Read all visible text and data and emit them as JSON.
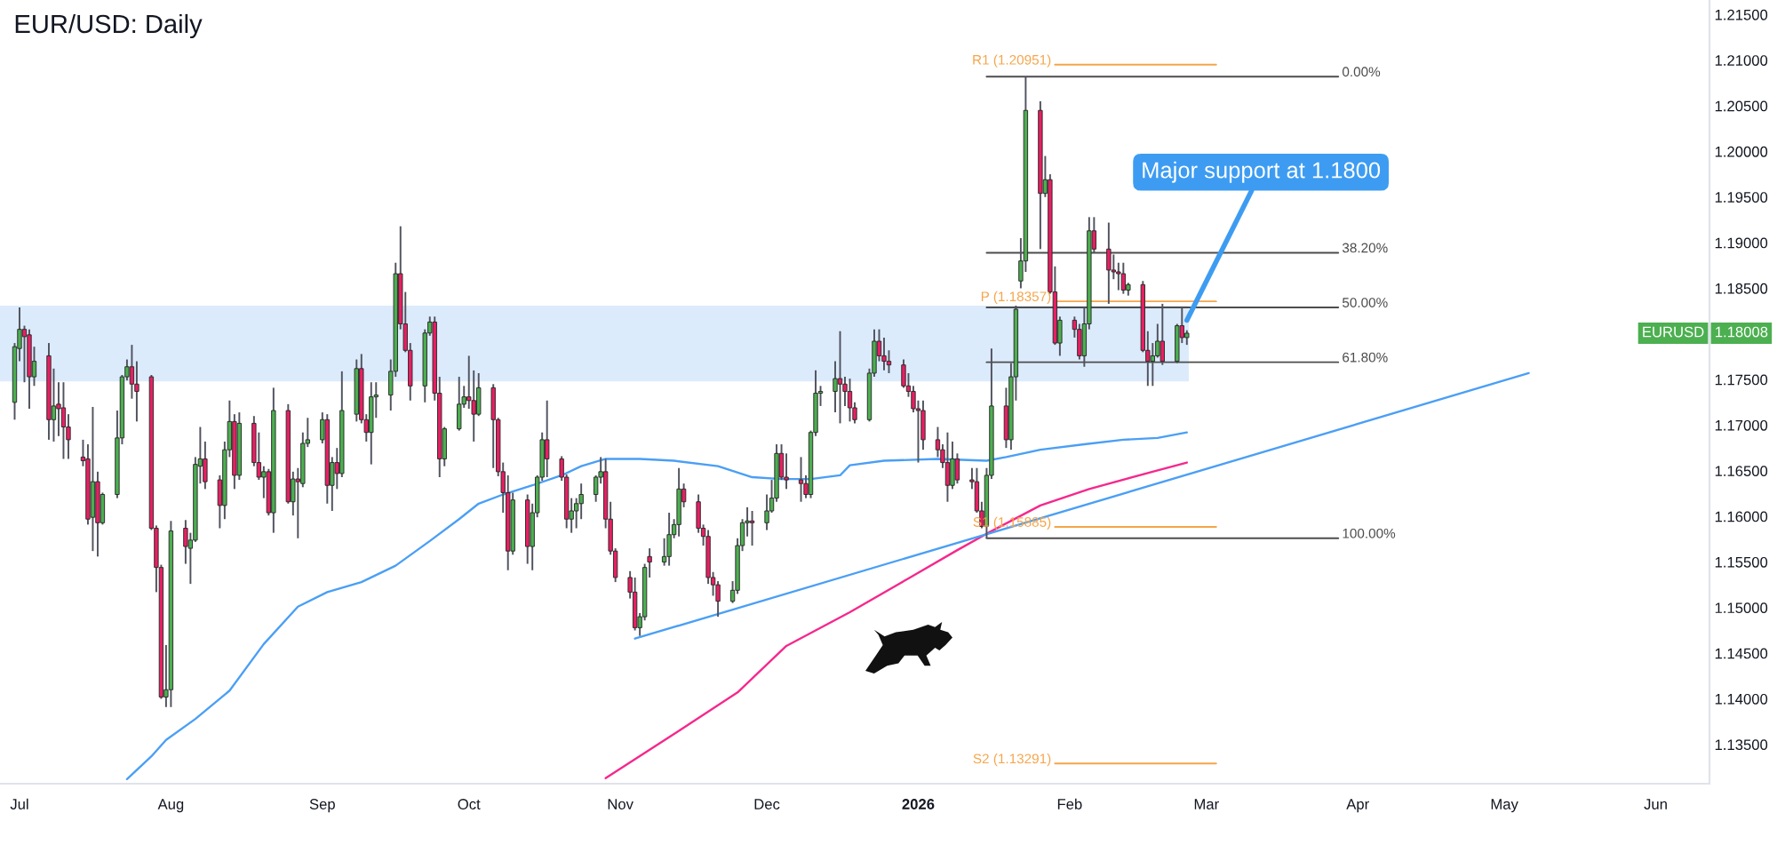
{
  "chart_data": {
    "type": "candlestick",
    "title": "EUR/USD: Daily",
    "x": [
      "2025-06-30",
      "2025-07-01",
      "2025-07-02",
      "2025-07-03",
      "2025-07-04",
      "2025-07-07",
      "2025-07-08",
      "2025-07-09",
      "2025-07-10",
      "2025-07-11",
      "2025-07-14",
      "2025-07-15",
      "2025-07-16",
      "2025-07-17",
      "2025-07-18",
      "2025-07-21",
      "2025-07-22",
      "2025-07-23",
      "2025-07-24",
      "2025-07-25",
      "2025-07-28",
      "2025-07-29",
      "2025-07-30",
      "2025-07-31",
      "2025-08-01",
      "2025-08-04",
      "2025-08-05",
      "2025-08-06",
      "2025-08-07",
      "2025-08-08",
      "2025-08-11",
      "2025-08-12",
      "2025-08-13",
      "2025-08-14",
      "2025-08-15",
      "2025-08-18",
      "2025-08-19",
      "2025-08-20",
      "2025-08-21",
      "2025-08-22",
      "2025-08-25",
      "2025-08-26",
      "2025-08-27",
      "2025-08-28",
      "2025-08-29",
      "2025-09-01",
      "2025-09-02",
      "2025-09-03",
      "2025-09-04",
      "2025-09-05",
      "2025-09-08",
      "2025-09-09",
      "2025-09-10",
      "2025-09-11",
      "2025-09-12",
      "2025-09-15",
      "2025-09-16",
      "2025-09-17",
      "2025-09-18",
      "2025-09-19",
      "2025-09-22",
      "2025-09-23",
      "2025-09-24",
      "2025-09-25",
      "2025-09-26",
      "2025-09-29",
      "2025-09-30",
      "2025-10-01",
      "2025-10-02",
      "2025-10-03",
      "2025-10-06",
      "2025-10-07",
      "2025-10-08",
      "2025-10-09",
      "2025-10-10",
      "2025-10-13",
      "2025-10-14",
      "2025-10-15",
      "2025-10-16",
      "2025-10-17",
      "2025-10-20",
      "2025-10-21",
      "2025-10-22",
      "2025-10-23",
      "2025-10-24",
      "2025-10-27",
      "2025-10-28",
      "2025-10-29",
      "2025-10-30",
      "2025-10-31",
      "2025-11-03",
      "2025-11-04",
      "2025-11-05",
      "2025-11-06",
      "2025-11-07",
      "2025-11-10",
      "2025-11-11",
      "2025-11-12",
      "2025-11-13",
      "2025-11-14",
      "2025-11-17",
      "2025-11-18",
      "2025-11-19",
      "2025-11-20",
      "2025-11-21",
      "2025-11-24",
      "2025-11-25",
      "2025-11-26",
      "2025-11-27",
      "2025-11-28",
      "2025-12-01",
      "2025-12-02",
      "2025-12-03",
      "2025-12-04",
      "2025-12-05",
      "2025-12-08",
      "2025-12-09",
      "2025-12-10",
      "2025-12-11",
      "2025-12-12",
      "2025-12-15",
      "2025-12-16",
      "2025-12-17",
      "2025-12-18",
      "2025-12-19",
      "2025-12-22",
      "2025-12-23",
      "2025-12-24",
      "2025-12-25",
      "2025-12-26",
      "2025-12-29",
      "2025-12-30",
      "2025-12-31",
      "2026-01-01",
      "2026-01-02",
      "2026-01-05",
      "2026-01-06",
      "2026-01-07",
      "2026-01-08",
      "2026-01-09",
      "2026-01-12",
      "2026-01-13",
      "2026-01-14",
      "2026-01-15",
      "2026-01-16",
      "2026-01-19",
      "2026-01-20",
      "2026-01-21",
      "2026-01-22",
      "2026-01-23",
      "2026-01-26",
      "2026-01-27",
      "2026-01-28",
      "2026-01-29",
      "2026-01-30",
      "2026-02-02",
      "2026-02-03",
      "2026-02-04",
      "2026-02-05",
      "2026-02-06",
      "2026-02-09",
      "2026-02-10",
      "2026-02-11",
      "2026-02-12",
      "2026-02-13",
      "2026-02-16",
      "2026-02-17",
      "2026-02-18",
      "2026-02-19",
      "2026-02-20",
      "2026-02-23",
      "2026-02-24",
      "2026-02-25"
    ],
    "ohlc": [
      [
        1.1725,
        1.179,
        1.1706,
        1.1786
      ],
      [
        1.1784,
        1.1829,
        1.177,
        1.1805
      ],
      [
        1.1805,
        1.1809,
        1.1747,
        1.1797
      ],
      [
        1.1799,
        1.1805,
        1.1718,
        1.1753
      ],
      [
        1.1753,
        1.1786,
        1.1743,
        1.177
      ],
      [
        1.1776,
        1.179,
        1.1684,
        1.1706
      ],
      [
        1.1706,
        1.1762,
        1.1682,
        1.1721
      ],
      [
        1.1723,
        1.1747,
        1.1688,
        1.1718
      ],
      [
        1.1719,
        1.1747,
        1.1663,
        1.1698
      ],
      [
        1.1698,
        1.1712,
        1.1663,
        1.1684
      ],
      [
        1.1665,
        1.1684,
        1.1655,
        1.1661
      ],
      [
        1.1663,
        1.1679,
        1.1591,
        1.1597
      ],
      [
        1.1599,
        1.172,
        1.1562,
        1.1638
      ],
      [
        1.1638,
        1.1649,
        1.1556,
        1.1593
      ],
      [
        1.1593,
        1.1626,
        1.1591,
        1.1624
      ],
      [
        1.1624,
        1.1716,
        1.162,
        1.1686
      ],
      [
        1.1686,
        1.1755,
        1.1679,
        1.1753
      ],
      [
        1.1753,
        1.1772,
        1.1749,
        1.1764
      ],
      [
        1.1764,
        1.1788,
        1.1729,
        1.1745
      ],
      [
        1.1745,
        1.177,
        1.1704,
        1.1737
      ],
      [
        1.1753,
        1.1755,
        1.1585,
        1.1587
      ],
      [
        1.1587,
        1.159,
        1.1517,
        1.1544
      ],
      [
        1.1544,
        1.1547,
        1.14,
        1.1402
      ],
      [
        1.1402,
        1.1459,
        1.1391,
        1.141
      ],
      [
        1.141,
        1.1595,
        1.1391,
        1.1584
      ],
      [
        1.1587,
        1.1596,
        1.1548,
        1.1567
      ],
      [
        1.1565,
        1.1582,
        1.1526,
        1.1574
      ],
      [
        1.1574,
        1.1665,
        1.1572,
        1.1657
      ],
      [
        1.1655,
        1.1698,
        1.1636,
        1.1663
      ],
      [
        1.1663,
        1.1682,
        1.163,
        1.1638
      ],
      [
        1.164,
        1.1645,
        1.1587,
        1.1612
      ],
      [
        1.1612,
        1.1682,
        1.1597,
        1.1673
      ],
      [
        1.1673,
        1.1727,
        1.1665,
        1.1704
      ],
      [
        1.1704,
        1.1712,
        1.163,
        1.1645
      ],
      [
        1.1645,
        1.1714,
        1.164,
        1.1702
      ],
      [
        1.1702,
        1.171,
        1.1655,
        1.1659
      ],
      [
        1.1659,
        1.1692,
        1.164,
        1.1643
      ],
      [
        1.1643,
        1.1655,
        1.162,
        1.1649
      ],
      [
        1.1649,
        1.1652,
        1.1601,
        1.1604
      ],
      [
        1.1604,
        1.1741,
        1.1582,
        1.1716
      ],
      [
        1.1716,
        1.1723,
        1.1614,
        1.1616
      ],
      [
        1.1616,
        1.1649,
        1.1601,
        1.1641
      ],
      [
        1.1641,
        1.1653,
        1.1576,
        1.1638
      ],
      [
        1.1636,
        1.1692,
        1.1632,
        1.168
      ],
      [
        1.168,
        1.1708,
        1.1676,
        1.1684
      ],
      [
        1.1684,
        1.1714,
        1.168,
        1.1706
      ],
      [
        1.1706,
        1.1712,
        1.1614,
        1.1634
      ],
      [
        1.1634,
        1.1665,
        1.1606,
        1.1659
      ],
      [
        1.1659,
        1.1675,
        1.163,
        1.1647
      ],
      [
        1.1647,
        1.1759,
        1.1643,
        1.1716
      ],
      [
        1.1712,
        1.1772,
        1.1704,
        1.1762
      ],
      [
        1.1762,
        1.1778,
        1.1702,
        1.1706
      ],
      [
        1.1706,
        1.1712,
        1.1682,
        1.1692
      ],
      [
        1.1692,
        1.1747,
        1.1657,
        1.1731
      ],
      [
        1.1731,
        1.1747,
        1.1708,
        1.1733
      ],
      [
        1.1733,
        1.1772,
        1.1716,
        1.1759
      ],
      [
        1.1759,
        1.1878,
        1.1753,
        1.1866
      ],
      [
        1.1866,
        1.1918,
        1.1805,
        1.1811
      ],
      [
        1.1811,
        1.1846,
        1.178,
        1.1782
      ],
      [
        1.1782,
        1.179,
        1.1727,
        1.1743
      ],
      [
        1.1743,
        1.1805,
        1.1725,
        1.1801
      ],
      [
        1.1801,
        1.1819,
        1.1798,
        1.1813
      ],
      [
        1.1813,
        1.1819,
        1.1727,
        1.1735
      ],
      [
        1.1735,
        1.1753,
        1.1643,
        1.1663
      ],
      [
        1.1663,
        1.1698,
        1.1655,
        1.1696
      ],
      [
        1.1696,
        1.1753,
        1.1694,
        1.1723
      ],
      [
        1.1723,
        1.1743,
        1.1719,
        1.1731
      ],
      [
        1.1731,
        1.1776,
        1.1718,
        1.1727
      ],
      [
        1.1727,
        1.176,
        1.1682,
        1.1712
      ],
      [
        1.1712,
        1.1757,
        1.171,
        1.1741
      ],
      [
        1.1741,
        1.1745,
        1.1653,
        1.1706
      ],
      [
        1.1706,
        1.1708,
        1.1644,
        1.1649
      ],
      [
        1.1649,
        1.1659,
        1.1604,
        1.1626
      ],
      [
        1.1626,
        1.1645,
        1.1541,
        1.1562
      ],
      [
        1.1562,
        1.1626,
        1.1558,
        1.1618
      ],
      [
        1.1618,
        1.1624,
        1.1548,
        1.1567
      ],
      [
        1.1567,
        1.1614,
        1.1541,
        1.1604
      ],
      [
        1.1604,
        1.1645,
        1.1599,
        1.1643
      ],
      [
        1.1643,
        1.1692,
        1.1639,
        1.1684
      ],
      [
        1.1684,
        1.1727,
        1.1643,
        1.1663
      ],
      [
        1.1663,
        1.1666,
        1.1639,
        1.1643
      ],
      [
        1.1643,
        1.1646,
        1.1587,
        1.1597
      ],
      [
        1.1597,
        1.162,
        1.1582,
        1.1606
      ],
      [
        1.1606,
        1.162,
        1.1587,
        1.1614
      ],
      [
        1.1614,
        1.1636,
        1.1597,
        1.1624
      ],
      [
        1.1624,
        1.1645,
        1.1616,
        1.1643
      ],
      [
        1.1643,
        1.1665,
        1.1636,
        1.1649
      ],
      [
        1.1649,
        1.1663,
        1.1587,
        1.1597
      ],
      [
        1.1597,
        1.1616,
        1.1558,
        1.1562
      ],
      [
        1.1562,
        1.1565,
        1.1528,
        1.1533
      ],
      [
        1.1533,
        1.154,
        1.151,
        1.1517
      ],
      [
        1.1517,
        1.1533,
        1.1475,
        1.1478
      ],
      [
        1.1478,
        1.1494,
        1.1469,
        1.149
      ],
      [
        1.149,
        1.1548,
        1.1486,
        1.1544
      ],
      [
        1.1556,
        1.1565,
        1.1533,
        1.155
      ],
      [
        1.155,
        1.1576,
        1.1546,
        1.1556
      ],
      [
        1.1556,
        1.1604,
        1.1546,
        1.158
      ],
      [
        1.158,
        1.1597,
        1.1576,
        1.1591
      ],
      [
        1.1591,
        1.1653,
        1.1578,
        1.163
      ],
      [
        1.163,
        1.1636,
        1.161,
        1.1616
      ],
      [
        1.1616,
        1.1624,
        1.1582,
        1.1587
      ],
      [
        1.1587,
        1.1591,
        1.1568,
        1.1578
      ],
      [
        1.1578,
        1.1585,
        1.1526,
        1.1533
      ],
      [
        1.1533,
        1.1539,
        1.1513,
        1.1525
      ],
      [
        1.1525,
        1.1529,
        1.149,
        1.1507
      ],
      [
        1.1507,
        1.1529,
        1.1505,
        1.1519
      ],
      [
        1.1519,
        1.1576,
        1.1515,
        1.1568
      ],
      [
        1.1568,
        1.1597,
        1.1562,
        1.1593
      ],
      [
        1.1593,
        1.161,
        1.1578,
        1.1595
      ],
      [
        1.1595,
        1.1606,
        1.1568,
        1.1593
      ],
      [
        1.1593,
        1.1624,
        1.1585,
        1.1606
      ],
      [
        1.1606,
        1.164,
        1.1604,
        1.162
      ],
      [
        1.162,
        1.1679,
        1.1616,
        1.1669
      ],
      [
        1.1669,
        1.1679,
        1.164,
        1.1643
      ],
      [
        1.1643,
        1.1669,
        1.163,
        1.164
      ],
      [
        1.164,
        1.1665,
        1.1616,
        1.1636
      ],
      [
        1.1636,
        1.1645,
        1.162,
        1.1624
      ],
      [
        1.1624,
        1.1694,
        1.162,
        1.1692
      ],
      [
        1.1692,
        1.176,
        1.1688,
        1.1735
      ],
      [
        1.1735,
        1.1743,
        1.1721,
        1.1737
      ],
      [
        1.1737,
        1.177,
        1.1714,
        1.1751
      ],
      [
        1.1751,
        1.1803,
        1.1702,
        1.1745
      ],
      [
        1.1745,
        1.1753,
        1.1721,
        1.1737
      ],
      [
        1.1737,
        1.1751,
        1.1704,
        1.1719
      ],
      [
        1.1719,
        1.1725,
        1.1702,
        1.1706
      ],
      [
        1.1706,
        1.1762,
        1.1704,
        1.1757
      ],
      [
        1.1757,
        1.1805,
        1.1753,
        1.1792
      ],
      [
        1.1792,
        1.1805,
        1.177,
        1.1776
      ],
      [
        1.1776,
        1.1796,
        1.176,
        1.177
      ],
      [
        1.177,
        1.1782,
        1.1757,
        1.1766
      ],
      [
        1.1766,
        1.1772,
        1.1741,
        1.1743
      ],
      [
        1.1743,
        1.1757,
        1.1731,
        1.1737
      ],
      [
        1.1737,
        1.1743,
        1.1714,
        1.1718
      ],
      [
        1.1718,
        1.1727,
        1.1659,
        1.1716
      ],
      [
        1.1716,
        1.1727,
        1.1673,
        1.1684
      ],
      [
        1.1684,
        1.1698,
        1.1665,
        1.1673
      ],
      [
        1.1673,
        1.1679,
        1.1653,
        1.1659
      ],
      [
        1.1659,
        1.1692,
        1.1616,
        1.1634
      ],
      [
        1.1634,
        1.1682,
        1.163,
        1.1663
      ],
      [
        1.1663,
        1.1669,
        1.1636,
        1.164
      ],
      [
        1.164,
        1.1653,
        1.163,
        1.1638
      ],
      [
        1.1638,
        1.1653,
        1.1604,
        1.1606
      ],
      [
        1.1606,
        1.1616,
        1.1587,
        1.1589
      ],
      [
        1.1589,
        1.1653,
        1.1576,
        1.1645
      ],
      [
        1.1645,
        1.1784,
        1.1641,
        1.1721
      ],
      [
        1.1721,
        1.1741,
        1.1675,
        1.1684
      ],
      [
        1.1684,
        1.1768,
        1.1673,
        1.1753
      ],
      [
        1.1753,
        1.1831,
        1.1727,
        1.1827
      ],
      [
        1.1858,
        1.1905,
        1.185,
        1.188
      ],
      [
        1.188,
        1.2082,
        1.1868,
        1.2045
      ],
      [
        1.2045,
        1.2055,
        1.1893,
        1.1954
      ],
      [
        1.1954,
        1.1995,
        1.195,
        1.1969
      ],
      [
        1.1969,
        1.1975,
        1.1844,
        1.1846
      ],
      [
        1.1846,
        1.1874,
        1.1788,
        1.179
      ],
      [
        1.179,
        1.1819,
        1.1776,
        1.1815
      ],
      [
        1.1815,
        1.1819,
        1.1796,
        1.1805
      ],
      [
        1.1805,
        1.1811,
        1.1772,
        1.1776
      ],
      [
        1.1776,
        1.1829,
        1.1764,
        1.1811
      ],
      [
        1.1811,
        1.1928,
        1.1805,
        1.1913
      ],
      [
        1.1913,
        1.1928,
        1.1889,
        1.1893
      ],
      [
        1.1893,
        1.1922,
        1.1833,
        1.187
      ],
      [
        1.187,
        1.1887,
        1.186,
        1.1868
      ],
      [
        1.1868,
        1.1878,
        1.1848,
        1.1866
      ],
      [
        1.1866,
        1.1878,
        1.1844,
        1.1848
      ],
      [
        1.1848,
        1.1856,
        1.1842,
        1.1854
      ],
      [
        1.1854,
        1.1858,
        1.178,
        1.1782
      ],
      [
        1.1782,
        1.1803,
        1.1743,
        1.177
      ],
      [
        1.177,
        1.179,
        1.1743,
        1.1776
      ],
      [
        1.1776,
        1.1811,
        1.1774,
        1.1792
      ],
      [
        1.1792,
        1.1833,
        1.1766,
        1.177
      ],
      [
        1.177,
        1.1811,
        1.1768,
        1.1809
      ],
      [
        1.1809,
        1.1829,
        1.179,
        1.1796
      ],
      [
        1.1796,
        1.1804,
        1.1788,
        1.18008
      ]
    ],
    "colors": [
      "#4caf50",
      "#4caf50",
      "#e91e63",
      "#e91e63",
      "#4caf50",
      "#e91e63",
      "#4caf50",
      "#e91e63",
      "#e91e63",
      "#e91e63",
      "#e91e63",
      "#e91e63",
      "#4caf50",
      "#e91e63",
      "#4caf50",
      "#4caf50",
      "#4caf50",
      "#4caf50",
      "#e91e63",
      "#e91e63",
      "#e91e63",
      "#e91e63",
      "#e91e63",
      "#4caf50",
      "#4caf50",
      "#e91e63",
      "#4caf50",
      "#4caf50",
      "#4caf50",
      "#e91e63",
      "#e91e63",
      "#4caf50",
      "#4caf50",
      "#e91e63",
      "#4caf50",
      "#e91e63",
      "#e91e63",
      "#4caf50",
      "#e91e63",
      "#4caf50",
      "#e91e63",
      "#4caf50",
      "#e91e63",
      "#4caf50",
      "#4caf50",
      "#4caf50",
      "#e91e63",
      "#4caf50",
      "#e91e63",
      "#4caf50",
      "#4caf50",
      "#e91e63",
      "#e91e63",
      "#4caf50",
      "#4caf50",
      "#4caf50",
      "#4caf50",
      "#e91e63",
      "#e91e63",
      "#e91e63",
      "#4caf50",
      "#4caf50",
      "#e91e63",
      "#e91e63",
      "#4caf50",
      "#4caf50",
      "#4caf50",
      "#e91e63",
      "#e91e63",
      "#4caf50",
      "#e91e63",
      "#e91e63",
      "#e91e63",
      "#e91e63",
      "#4caf50",
      "#e91e63",
      "#4caf50",
      "#4caf50",
      "#4caf50",
      "#e91e63",
      "#e91e63",
      "#e91e63",
      "#4caf50",
      "#4caf50",
      "#4caf50",
      "#4caf50",
      "#4caf50",
      "#e91e63",
      "#e91e63",
      "#e91e63",
      "#e91e63",
      "#e91e63",
      "#4caf50",
      "#4caf50",
      "#e91e63",
      "#4caf50",
      "#4caf50",
      "#4caf50",
      "#4caf50",
      "#e91e63",
      "#e91e63",
      "#e91e63",
      "#e91e63",
      "#e91e63",
      "#e91e63",
      "#4caf50",
      "#4caf50",
      "#4caf50",
      "#4caf50",
      "#e91e63",
      "#4caf50",
      "#4caf50",
      "#4caf50",
      "#e91e63",
      "#e91e63",
      "#e91e63",
      "#e91e63",
      "#4caf50",
      "#4caf50",
      "#4caf50",
      "#4caf50",
      "#e91e63",
      "#e91e63",
      "#e91e63",
      "#e91e63",
      "#4caf50",
      "#4caf50",
      "#e91e63",
      "#e91e63",
      "#e91e63",
      "#e91e63",
      "#e91e63",
      "#e91e63",
      "#e91e63",
      "#e91e63",
      "#e91e63",
      "#e91e63",
      "#e91e63",
      "#4caf50",
      "#e91e63",
      "#e91e63",
      "#e91e63",
      "#e91e63",
      "#4caf50",
      "#4caf50",
      "#e91e63",
      "#4caf50",
      "#4caf50",
      "#4caf50",
      "#4caf50",
      "#e91e63",
      "#4caf50",
      "#e91e63",
      "#e91e63",
      "#4caf50",
      "#e91e63",
      "#e91e63",
      "#4caf50",
      "#4caf50",
      "#e91e63",
      "#e91e63",
      "#e91e63",
      "#e91e63",
      "#e91e63",
      "#4caf50",
      "#e91e63",
      "#e91e63",
      "#4caf50",
      "#4caf50",
      "#e91e63",
      "#4caf50",
      "#e91e63",
      "#4caf50"
    ],
    "series": [
      {
        "type": "line",
        "color": "#4a9ff5",
        "x": [
          "2025-07-23",
          "2025-07-28",
          "2025-07-31",
          "2025-08-06",
          "2025-08-13",
          "2025-08-20",
          "2025-08-27",
          "2025-09-02",
          "2025-09-09",
          "2025-09-16",
          "2025-09-23",
          "2025-09-29",
          "2025-10-03",
          "2025-10-08",
          "2025-10-14",
          "2025-10-20",
          "2025-10-24",
          "2025-10-29",
          "2025-11-05",
          "2025-11-12",
          "2025-11-21",
          "2025-11-28",
          "2025-12-04",
          "2025-12-10",
          "2025-12-16",
          "2025-12-18",
          "2025-12-25",
          "2026-01-05",
          "2026-01-15",
          "2026-01-19",
          "2026-01-26",
          "2026-02-04",
          "2026-02-12",
          "2026-02-19",
          "2026-02-25"
        ],
        "values": [
          1.1312,
          1.1337,
          1.1355,
          1.1378,
          1.1409,
          1.146,
          1.1501,
          1.1517,
          1.1528,
          1.1546,
          1.1573,
          1.1597,
          1.1614,
          1.1624,
          1.1634,
          1.1645,
          1.1655,
          1.1663,
          1.1663,
          1.1661,
          1.1655,
          1.1643,
          1.1641,
          1.1641,
          1.1645,
          1.1656,
          1.1661,
          1.1663,
          1.1661,
          1.1665,
          1.1673,
          1.1679,
          1.1684,
          1.1686,
          1.1692
        ]
      },
      {
        "type": "line",
        "color": "#f5288c",
        "x": [
          "2025-10-29",
          "2025-11-13",
          "2025-11-25",
          "2025-12-05",
          "2025-12-18",
          "2025-12-30",
          "2026-01-09",
          "2026-01-15",
          "2026-01-26",
          "2026-02-05",
          "2026-02-18",
          "2026-02-25"
        ],
        "values": [
          1.1313,
          1.1365,
          1.1407,
          1.1458,
          1.1495,
          1.1532,
          1.1563,
          1.1581,
          1.1612,
          1.163,
          1.1649,
          1.1659
        ]
      },
      {
        "type": "line",
        "color": "#4a9ff5",
        "x": [
          "2025-11-04",
          "2026-05-06"
        ],
        "values": [
          1.1466,
          1.1757
        ]
      },
      {
        "type": "line",
        "name": "0.00%",
        "color": "#4d4d4d",
        "x": [
          "2026-01-15",
          "2026-03-28"
        ],
        "values": [
          1.2082,
          1.2082
        ]
      },
      {
        "type": "line",
        "name": "38.20%",
        "color": "#4d4d4d",
        "x": [
          "2026-01-15",
          "2026-03-28"
        ],
        "values": [
          1.1889,
          1.1889
        ]
      },
      {
        "type": "line",
        "name": "50.00%",
        "color": "#4d4d4d",
        "x": [
          "2026-01-15",
          "2026-03-28"
        ],
        "values": [
          1.1829,
          1.1829
        ]
      },
      {
        "type": "line",
        "name": "61.80%",
        "color": "#4d4d4d",
        "x": [
          "2026-01-15",
          "2026-03-28"
        ],
        "values": [
          1.1769,
          1.1769
        ]
      },
      {
        "type": "line",
        "name": "100.00%",
        "color": "#4d4d4d",
        "x": [
          "2026-01-15",
          "2026-03-28"
        ],
        "values": [
          1.1576,
          1.1576
        ]
      },
      {
        "type": "line",
        "name": "R1 (1.20951)",
        "color": "#f5a54a",
        "x": [
          "2026-03-03",
          "2026-01-29"
        ],
        "values": [
          1.20951,
          1.20951
        ]
      },
      {
        "type": "line",
        "name": "P (1.18357)",
        "color": "#f5a54a",
        "x": [
          "2026-03-03",
          "2026-01-29"
        ],
        "values": [
          1.18357,
          1.18357
        ]
      },
      {
        "type": "line",
        "name": "S1 (1.15885)",
        "color": "#f5a54a",
        "x": [
          "2026-03-03",
          "2026-01-29"
        ],
        "values": [
          1.15885,
          1.15885
        ]
      },
      {
        "type": "line",
        "name": "S2 (1.13291)",
        "color": "#f5a54a",
        "x": [
          "2026-03-03",
          "2026-01-29"
        ],
        "values": [
          1.13291,
          1.13291
        ]
      }
    ],
    "bands": [
      {
        "axis": "y",
        "from": 1.1748,
        "to": 1.1831,
        "color": "#dcebfc"
      }
    ],
    "annotations": [
      {
        "text": "Major support at 1.1800",
        "x": "2026-02-25",
        "y": 1.1815
      },
      {
        "text": "EURUSD",
        "y": 1.18008
      },
      {
        "text": "1.18008",
        "y": 1.18008
      }
    ],
    "xlim": [
      "2025-06-27",
      "2026-06-12"
    ],
    "xticks": [
      {
        "value": "2025-07-01",
        "label": "Jul"
      },
      {
        "value": "2025-08-01",
        "label": "Aug"
      },
      {
        "value": "2025-09-01",
        "label": "Sep"
      },
      {
        "value": "2025-10-01",
        "label": "Oct"
      },
      {
        "value": "2025-11-01",
        "label": "Nov"
      },
      {
        "value": "2025-12-01",
        "label": "Dec"
      },
      {
        "value": "2026-01-01",
        "label": "2026"
      },
      {
        "value": "2026-02-01",
        "label": "Feb"
      },
      {
        "value": "2026-03-01",
        "label": "Mar"
      },
      {
        "value": "2026-04-01",
        "label": "Apr"
      },
      {
        "value": "2026-05-01",
        "label": "May"
      },
      {
        "value": "2026-06-01",
        "label": "Jun"
      }
    ],
    "ylim": [
      1.1307,
      1.2166
    ],
    "yticks": [
      {
        "value": 1.135,
        "label": "1.13500"
      },
      {
        "value": 1.14,
        "label": "1.14000"
      },
      {
        "value": 1.145,
        "label": "1.14500"
      },
      {
        "value": 1.15,
        "label": "1.15000"
      },
      {
        "value": 1.155,
        "label": "1.15500"
      },
      {
        "value": 1.16,
        "label": "1.16000"
      },
      {
        "value": 1.165,
        "label": "1.16500"
      },
      {
        "value": 1.17,
        "label": "1.17000"
      },
      {
        "value": 1.175,
        "label": "1.17500"
      },
      {
        "value": 1.185,
        "label": "1.18500"
      },
      {
        "value": 1.19,
        "label": "1.19000"
      },
      {
        "value": 1.195,
        "label": "1.19500"
      },
      {
        "value": 1.2,
        "label": "1.20000"
      },
      {
        "value": 1.205,
        "label": "1.20500"
      },
      {
        "value": 1.21,
        "label": "1.21000"
      },
      {
        "value": 1.215,
        "label": "1.21500"
      }
    ]
  }
}
